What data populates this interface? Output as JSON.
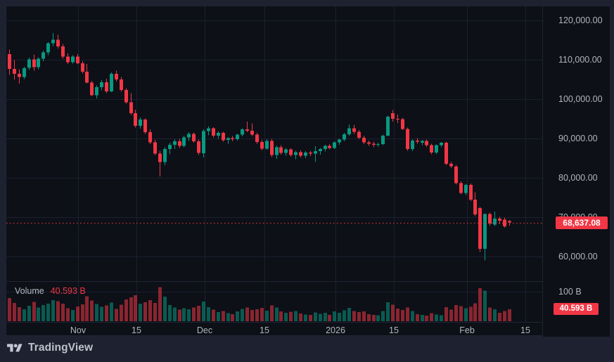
{
  "attribution": {
    "brand": "TradingView"
  },
  "legend": {
    "title": "Volume",
    "value": "40.593 B"
  },
  "price_axis": {
    "ticks": [
      {
        "label": "120,000.00",
        "value": 120000
      },
      {
        "label": "110,000.00",
        "value": 110000
      },
      {
        "label": "100,000.00",
        "value": 100000
      },
      {
        "label": "90,000.00",
        "value": 90000
      },
      {
        "label": "80,000.00",
        "value": 80000
      },
      {
        "label": "70,000.00",
        "value": 70000
      },
      {
        "label": "60,000.00",
        "value": 60000
      }
    ],
    "last_price_label": "68,637.08",
    "last_price_value": 68637.08
  },
  "volume_axis": {
    "ticks": [
      {
        "label": "100 B",
        "value": 100
      }
    ],
    "last_label": "40.593 B",
    "last_value": 40.593
  },
  "time_axis": {
    "labels": [
      "Nov",
      "15",
      "Dec",
      "15",
      "2026",
      "15",
      "Feb",
      "15"
    ]
  },
  "colors": {
    "up": "#089981",
    "down": "#f23645",
    "chart_bg": "#0d1017",
    "outer_bg": "#1e2230",
    "grid": "#1a2030",
    "axis_text": "#b2b5be",
    "last_price_line": "#f23645"
  },
  "chart_data": {
    "type": "candlestick",
    "subpanes": [
      "price",
      "volume"
    ],
    "title": "",
    "xlabel_ticks": [
      "Nov",
      "15",
      "Dec",
      "15",
      "2026",
      "15",
      "Feb",
      "15"
    ],
    "price_axis_range": [
      55500,
      123500
    ],
    "volume_axis_range_b": [
      0,
      133
    ],
    "last_price": 68637.08,
    "last_volume_b": 40.593,
    "volume_unit": "B",
    "candles_format": [
      "open",
      "high",
      "low",
      "close",
      "volume_b"
    ],
    "candles": [
      [
        111400,
        112600,
        106200,
        107700,
        78
      ],
      [
        107700,
        109900,
        104900,
        106400,
        62
      ],
      [
        106400,
        107600,
        103900,
        105600,
        48
      ],
      [
        105600,
        108200,
        105100,
        107900,
        41
      ],
      [
        107900,
        110500,
        107400,
        110100,
        52
      ],
      [
        110100,
        111300,
        107200,
        108100,
        66
      ],
      [
        108100,
        110600,
        107600,
        110300,
        47
      ],
      [
        110300,
        112300,
        109600,
        111900,
        55
      ],
      [
        111900,
        114500,
        111200,
        114200,
        60
      ],
      [
        114200,
        116800,
        113400,
        115100,
        72
      ],
      [
        115100,
        116300,
        112900,
        113400,
        68
      ],
      [
        113400,
        114000,
        110300,
        110800,
        59
      ],
      [
        110800,
        111600,
        108900,
        109400,
        44
      ],
      [
        109400,
        111200,
        109000,
        110800,
        38
      ],
      [
        110800,
        111400,
        108800,
        109100,
        50
      ],
      [
        109100,
        109600,
        106500,
        107000,
        57
      ],
      [
        107000,
        108900,
        104000,
        104200,
        85
      ],
      [
        104200,
        104600,
        100800,
        101000,
        70
      ],
      [
        101000,
        103500,
        100200,
        103000,
        58
      ],
      [
        103000,
        104800,
        102200,
        104300,
        49
      ],
      [
        104300,
        105200,
        101500,
        102000,
        54
      ],
      [
        102000,
        106800,
        101800,
        106400,
        63
      ],
      [
        106400,
        107200,
        104500,
        105000,
        42
      ],
      [
        105000,
        105600,
        101900,
        102300,
        56
      ],
      [
        102300,
        102800,
        98800,
        99200,
        74
      ],
      [
        99200,
        101500,
        96000,
        96400,
        81
      ],
      [
        96400,
        97300,
        92800,
        93200,
        88
      ],
      [
        93200,
        95400,
        92500,
        94800,
        59
      ],
      [
        94800,
        95100,
        91200,
        91600,
        64
      ],
      [
        91600,
        92300,
        88600,
        89000,
        71
      ],
      [
        89000,
        89600,
        85800,
        86200,
        62
      ],
      [
        86200,
        86900,
        80400,
        84000,
        115
      ],
      [
        84000,
        87800,
        83200,
        87300,
        83
      ],
      [
        87300,
        88900,
        86000,
        88400,
        55
      ],
      [
        88400,
        89800,
        87300,
        89300,
        46
      ],
      [
        89300,
        89900,
        87600,
        88100,
        39
      ],
      [
        88100,
        90700,
        87800,
        90300,
        44
      ],
      [
        90300,
        91600,
        89400,
        91200,
        41
      ],
      [
        91200,
        91500,
        88900,
        89300,
        47
      ],
      [
        89300,
        89700,
        85800,
        86300,
        52
      ],
      [
        86300,
        92300,
        85200,
        91900,
        67
      ],
      [
        91900,
        93100,
        90800,
        92600,
        48
      ],
      [
        92600,
        92900,
        90300,
        90700,
        39
      ],
      [
        90700,
        91800,
        89900,
        91400,
        31
      ],
      [
        91400,
        91700,
        89200,
        89600,
        35
      ],
      [
        89600,
        90400,
        88700,
        90100,
        27
      ],
      [
        90100,
        90600,
        89300,
        89800,
        24
      ],
      [
        89800,
        91200,
        89500,
        91000,
        33
      ],
      [
        91000,
        92600,
        90500,
        92300,
        42
      ],
      [
        92300,
        94300,
        91600,
        92000,
        46
      ],
      [
        92000,
        93800,
        90600,
        91000,
        38
      ],
      [
        91000,
        91400,
        88700,
        89100,
        41
      ],
      [
        89100,
        89600,
        87000,
        87400,
        45
      ],
      [
        87400,
        89800,
        87100,
        89400,
        36
      ],
      [
        89400,
        89900,
        85300,
        85800,
        53
      ],
      [
        85800,
        88200,
        84800,
        87800,
        47
      ],
      [
        87800,
        88300,
        85900,
        86300,
        33
      ],
      [
        86300,
        87600,
        85600,
        87200,
        29
      ],
      [
        87200,
        87500,
        85400,
        85800,
        32
      ],
      [
        85800,
        86900,
        84700,
        86500,
        35
      ],
      [
        86500,
        87000,
        85200,
        85600,
        26
      ],
      [
        85600,
        86800,
        85000,
        86400,
        23
      ],
      [
        86400,
        86900,
        85500,
        86200,
        21
      ],
      [
        86200,
        88000,
        84000,
        86800,
        30
      ],
      [
        86800,
        87600,
        85900,
        87300,
        25
      ],
      [
        87300,
        88400,
        86700,
        88100,
        28
      ],
      [
        88100,
        88600,
        87200,
        87600,
        22
      ],
      [
        87600,
        89300,
        87300,
        89000,
        33
      ],
      [
        89000,
        89900,
        88400,
        89700,
        29
      ],
      [
        89700,
        91400,
        89300,
        91100,
        37
      ],
      [
        91100,
        93600,
        90700,
        92600,
        45
      ],
      [
        92600,
        93500,
        91200,
        91700,
        34
      ],
      [
        91700,
        92100,
        89800,
        90200,
        31
      ],
      [
        90200,
        90700,
        88600,
        89000,
        33
      ],
      [
        89000,
        89500,
        88100,
        88700,
        24
      ],
      [
        88700,
        89200,
        87800,
        88400,
        22
      ],
      [
        88400,
        88900,
        87900,
        88600,
        20
      ],
      [
        88600,
        91000,
        88300,
        90700,
        35
      ],
      [
        90700,
        95800,
        90500,
        95500,
        64
      ],
      [
        96400,
        97200,
        94300,
        95000,
        56
      ],
      [
        95000,
        96100,
        93900,
        94900,
        43
      ],
      [
        94900,
        95300,
        92100,
        92400,
        38
      ],
      [
        92400,
        92800,
        86900,
        87300,
        46
      ],
      [
        87300,
        89800,
        86800,
        89500,
        35
      ],
      [
        89500,
        90100,
        88700,
        89200,
        24
      ],
      [
        88900,
        89600,
        88300,
        89400,
        21
      ],
      [
        89400,
        89700,
        87900,
        88300,
        19
      ],
      [
        88300,
        88700,
        86000,
        86400,
        27
      ],
      [
        86400,
        88500,
        86100,
        88300,
        23
      ],
      [
        88300,
        89100,
        87800,
        88900,
        20
      ],
      [
        88900,
        89200,
        83200,
        83600,
        48
      ],
      [
        83600,
        84100,
        82500,
        82900,
        39
      ],
      [
        82900,
        83300,
        78300,
        78700,
        55
      ],
      [
        78700,
        79100,
        75800,
        76200,
        51
      ],
      [
        76200,
        78500,
        75600,
        78200,
        44
      ],
      [
        78200,
        78600,
        74100,
        74500,
        49
      ],
      [
        74500,
        76300,
        70300,
        70700,
        61
      ],
      [
        72300,
        72600,
        61200,
        62000,
        112
      ],
      [
        62000,
        71000,
        59000,
        70800,
        104
      ],
      [
        70800,
        71200,
        67900,
        68400,
        47
      ],
      [
        68100,
        71400,
        67800,
        69600,
        41
      ],
      [
        69600,
        70100,
        68300,
        69100,
        28
      ],
      [
        69400,
        69900,
        67300,
        67700,
        34
      ],
      [
        69000,
        69300,
        67900,
        68637,
        40.593
      ]
    ]
  }
}
